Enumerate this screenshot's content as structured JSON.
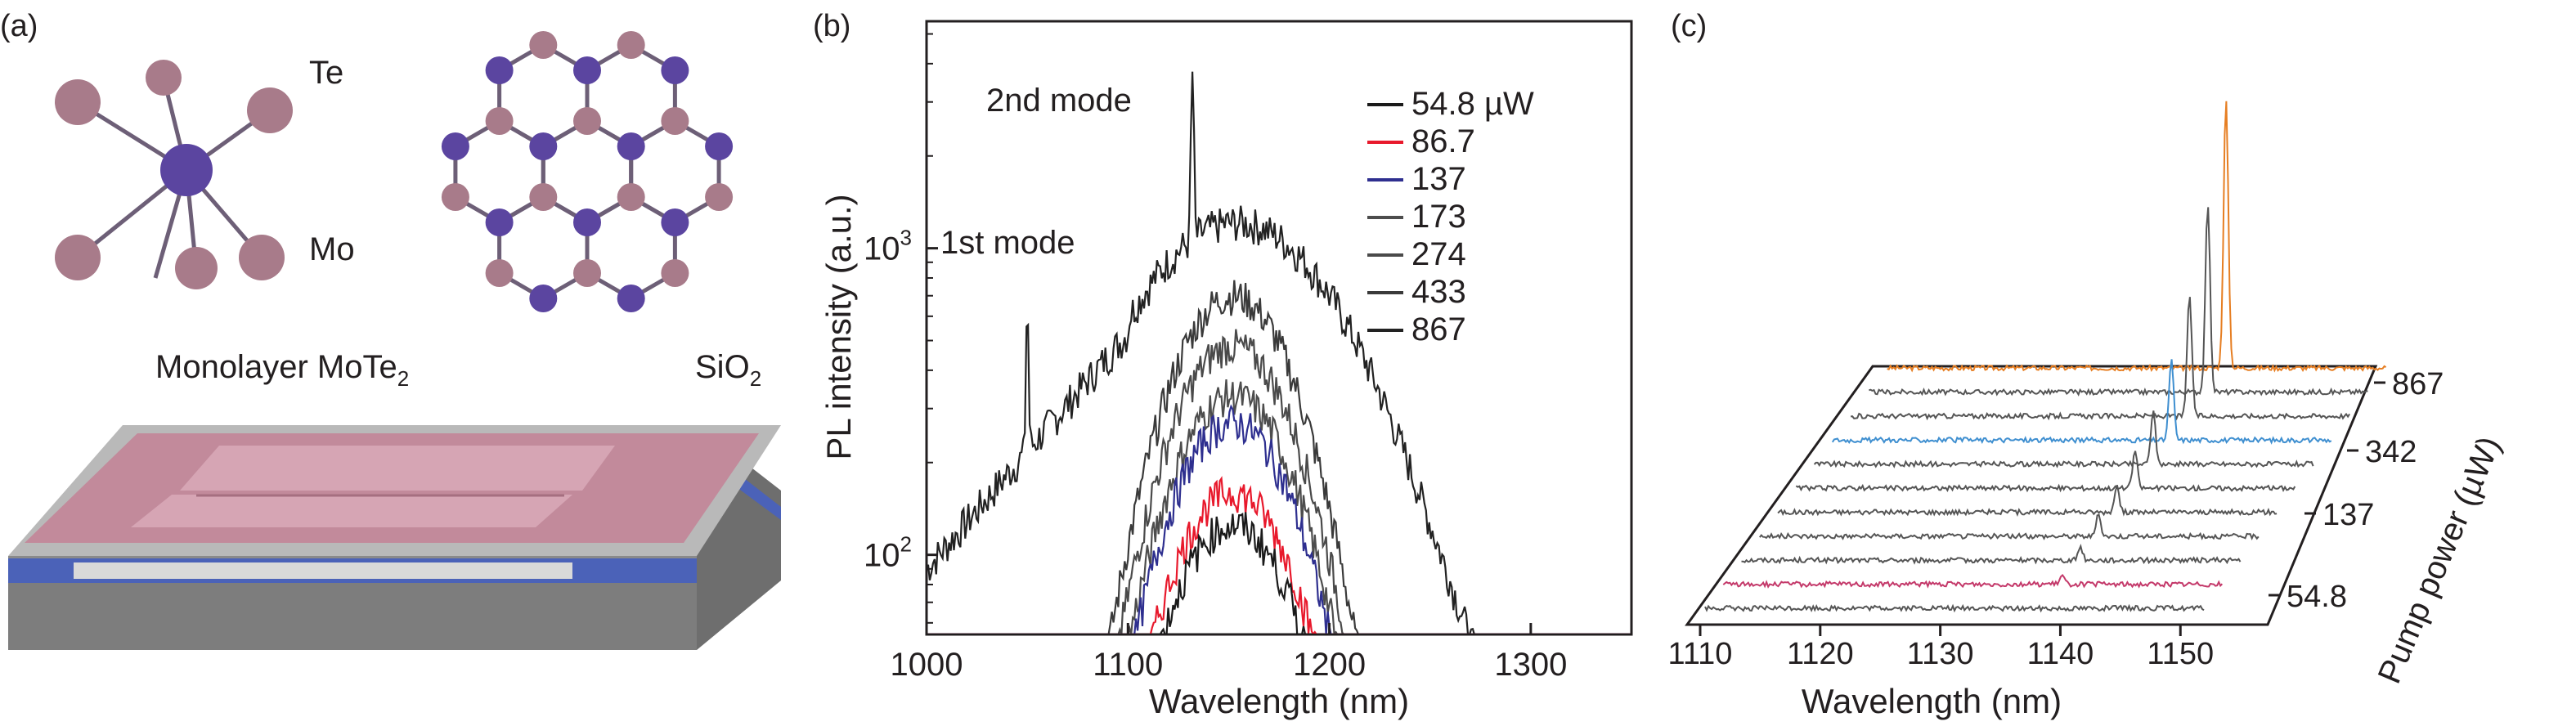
{
  "panel_a": {
    "label": "(a)",
    "te_label": "Te",
    "mo_label": "Mo",
    "monolayer_label": "Monolayer MoTe",
    "monolayer_sub": "2",
    "sio2_label": "SiO",
    "sio2_sub": "2",
    "colors": {
      "te_atom": "#a87b8a",
      "mo_atom": "#5b45a0",
      "bond": "#6d5f77",
      "slab_top": "#b9b9b9",
      "film": "#c28a9b",
      "sio2": "#4b62b8"
    }
  },
  "panel_b": {
    "label": "(b)",
    "ann_2nd": "2nd mode",
    "ann_1st": "1st mode",
    "legend_units": "µW",
    "colors": [
      "#1a1a1a",
      "#e8192c",
      "#2e2f8f",
      "#4d4d4d",
      "#4a4a4a",
      "#3a3a3a",
      "#222222"
    ]
  },
  "panel_c": {
    "label": "(c)",
    "colors": [
      "#555555",
      "#c4396a",
      "#555555",
      "#555555",
      "#555555",
      "#555555",
      "#555555",
      "#3f8fd0",
      "#555555",
      "#555555",
      "#e67e22"
    ]
  },
  "chart_data": [
    {
      "type": "line",
      "panel": "(b)",
      "title": "",
      "xlabel": "Wavelength (nm)",
      "ylabel": "PL intensity (a.u.)",
      "xlim": [
        1000,
        1350
      ],
      "ylim": [
        55,
        5500
      ],
      "yscale": "log",
      "xticks": [
        1000,
        1100,
        1200,
        1300
      ],
      "yticks": [
        "10^2",
        "10^3"
      ],
      "legend_position": "top-right",
      "annotations": [
        "2nd mode",
        "1st mode"
      ],
      "series": [
        {
          "name": "54.8 µW",
          "peak_x": 1152,
          "peak_y": 125
        },
        {
          "name": "86.7",
          "peak_x": 1152,
          "peak_y": 160
        },
        {
          "name": "137",
          "peak_x": 1152,
          "peak_y": 270
        },
        {
          "name": "173",
          "peak_x": 1152,
          "peak_y": 330
        },
        {
          "name": "274",
          "peak_x": 1152,
          "peak_y": 480
        },
        {
          "name": "433",
          "peak_x": 1152,
          "peak_y": 700
        },
        {
          "name": "867",
          "peak_x": 1155,
          "peak_y": 1100
        }
      ],
      "mode_peaks": [
        {
          "label": "1st mode",
          "x": 1050,
          "y": 600
        },
        {
          "label": "2nd mode",
          "x": 1132,
          "y": 3300
        }
      ]
    },
    {
      "type": "line",
      "panel": "(c)",
      "title": "",
      "xlabel": "Wavelength (nm)",
      "ylabel": "Pump power (µW)",
      "xlim": [
        1110,
        1155
      ],
      "xticks": [
        1110,
        1120,
        1130,
        1140,
        1150
      ],
      "yticks": [
        "54.8",
        "137",
        "342",
        "867"
      ],
      "series_count": 11,
      "peak_wavelength": 1141,
      "peak_heights_relative": [
        0.0,
        0.03,
        0.05,
        0.08,
        0.1,
        0.14,
        0.2,
        0.3,
        0.45,
        0.7,
        1.0
      ]
    }
  ]
}
